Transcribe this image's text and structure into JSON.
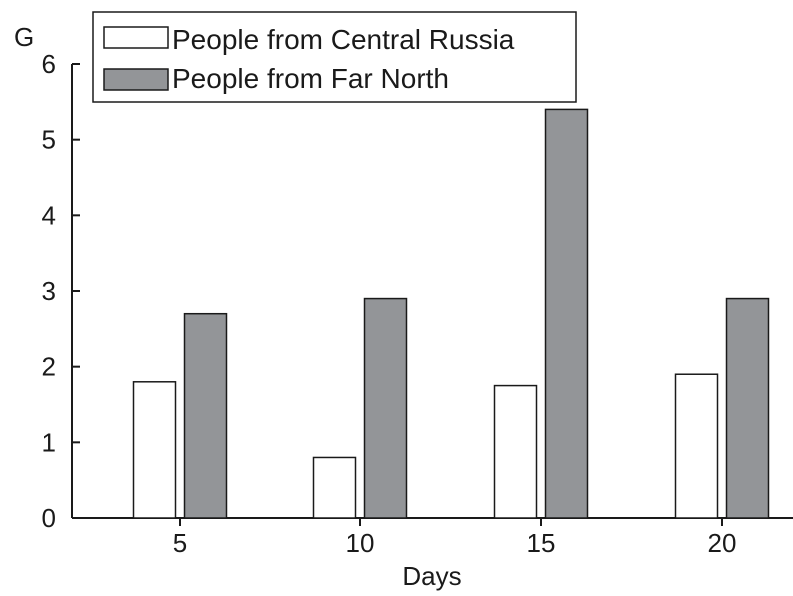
{
  "chart_data": {
    "type": "bar",
    "title": "",
    "xlabel": "Days",
    "ylabel": "G",
    "categories": [
      "5",
      "10",
      "15",
      "20"
    ],
    "series": [
      {
        "name": "People from Central Russia",
        "values": [
          1.8,
          0.8,
          1.75,
          1.9
        ],
        "color": "#ffffff"
      },
      {
        "name": "People from Far North",
        "values": [
          2.7,
          2.9,
          5.4,
          2.9
        ],
        "color": "#939598"
      }
    ],
    "ylim": [
      0,
      6
    ],
    "yticks": [
      "0",
      "1",
      "2",
      "3",
      "4",
      "5",
      "6"
    ],
    "grid": false,
    "legend_position": "top-left"
  }
}
